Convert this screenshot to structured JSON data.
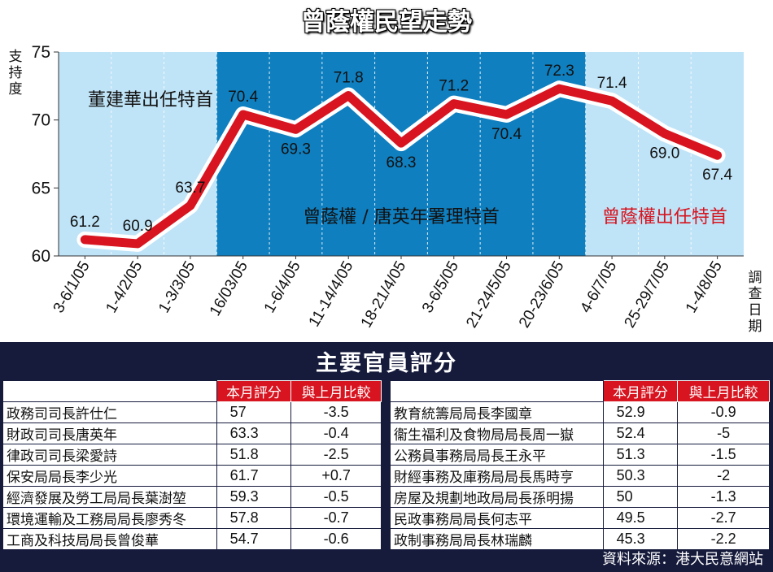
{
  "chart_data": {
    "type": "line",
    "title": "曾蔭權民望走勢",
    "ylabel": "支持度",
    "xlabel": "調查日期",
    "ylim": [
      60,
      75
    ],
    "yticks": [
      "60",
      "65",
      "70",
      "75"
    ],
    "categories": [
      "3-6/1/05",
      "1-4/2/05",
      "1-3/3/05",
      "16/03/05",
      "1-6/4/05",
      "11-14/4/05",
      "18-21/4/05",
      "3-6/5/05",
      "21-24/5/05",
      "20-23/6/05",
      "4-6/7/05",
      "25-29/7/05",
      "1-4/8/05"
    ],
    "values": [
      61.2,
      60.9,
      63.7,
      70.4,
      69.3,
      71.8,
      68.3,
      71.2,
      70.4,
      72.3,
      71.4,
      69.0,
      67.4
    ],
    "data_labels": [
      "61.2",
      "60.9",
      "63.7",
      "70.4",
      "69.3",
      "71.8",
      "68.3",
      "71.2",
      "70.4",
      "72.3",
      "71.4",
      "69.0",
      "67.4"
    ],
    "line_color": "#d7141f",
    "periods": [
      {
        "label": "董建華出任特首",
        "color": "#bfe3f7",
        "from_index": 0,
        "to_index": 2,
        "text_color": "#111111"
      },
      {
        "label": "曾蔭權 / 唐英年署理特首",
        "color": "#0f7fbf",
        "from_index": 3,
        "to_index": 9,
        "text_color": "#111111"
      },
      {
        "label": "曾蔭權出任特首",
        "color": "#bfe3f7",
        "from_index": 10,
        "to_index": 12,
        "text_color": "#d7141f"
      }
    ]
  },
  "table": {
    "title": "主要官員評分",
    "headers": {
      "score": "本月評分",
      "change": "與上月比較"
    },
    "left_rows": [
      {
        "name": "政務司司長許仕仁",
        "score": "57",
        "change": "-3.5"
      },
      {
        "name": "財政司司長唐英年",
        "score": "63.3",
        "change": "-0.4"
      },
      {
        "name": "律政司司長梁愛詩",
        "score": "51.8",
        "change": "-2.5"
      },
      {
        "name": "保安局局長李少光",
        "score": "61.7",
        "change": "+0.7"
      },
      {
        "name": "經濟發展及勞工局局長葉澍堃",
        "score": "59.3",
        "change": "-0.5"
      },
      {
        "name": "環境運輸及工務局局長廖秀冬",
        "score": "57.8",
        "change": "-0.7"
      },
      {
        "name": "工商及科技局局長曾俊華",
        "score": "54.7",
        "change": "-0.6"
      }
    ],
    "right_rows": [
      {
        "name": "教育統籌局局長李國章",
        "score": "52.9",
        "change": "-0.9"
      },
      {
        "name": "衞生福利及食物局局長周一嶽",
        "score": "52.4",
        "change": "-5"
      },
      {
        "name": "公務員事務局局長王永平",
        "score": "51.3",
        "change": "-1.5"
      },
      {
        "name": "財經事務及庫務局局長馬時亨",
        "score": "50.3",
        "change": "-2"
      },
      {
        "name": "房屋及規劃地政局局長孫明揚",
        "score": "50",
        "change": "-1.3"
      },
      {
        "name": "民政事務局局長何志平",
        "score": "49.5",
        "change": "-2.7"
      },
      {
        "name": "政制事務局局長林瑞麟",
        "score": "45.3",
        "change": "-2.2"
      }
    ]
  },
  "source": "資料來源：港大民意網站"
}
